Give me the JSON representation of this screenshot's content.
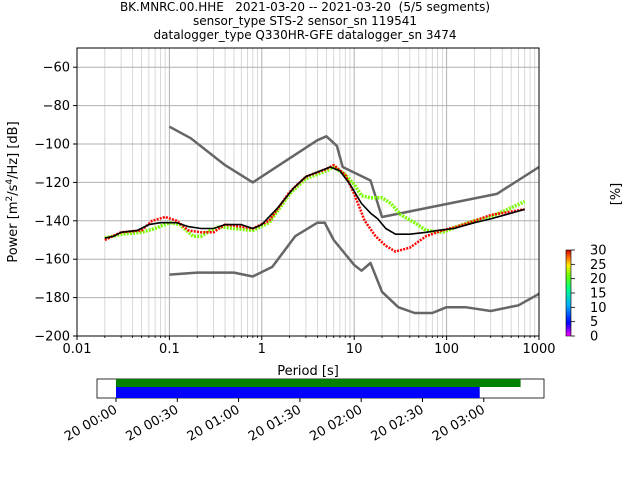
{
  "title_lines": [
    "BK.MNRC.00.HHE   2021-03-20 -- 2021-03-20  (5/5 segments)",
    "sensor_type STS-2 sensor_sn 119541",
    "datalogger_type Q330HR-GFE datalogger_sn 3474"
  ],
  "colorbar": {
    "label": "[%]",
    "ticks": [
      "0",
      "5",
      "10",
      "15",
      "20",
      "25",
      "30"
    ],
    "range": [
      0,
      30
    ]
  },
  "timeline": {
    "tick_labels": [
      "20 00:00",
      "20 00:30",
      "20 01:00",
      "20 01:30",
      "20 02:00",
      "20 02:30",
      "20 03:00"
    ],
    "green_bar": {
      "start": "00:00",
      "end": "03:18"
    },
    "blue_bar": {
      "start": "00:00",
      "end": "02:58"
    },
    "colors": {
      "green": "#008000",
      "blue": "#0000ff"
    }
  },
  "chart_data": {
    "type": "line",
    "xlabel": "Period [s]",
    "ylabel_parts": [
      "Power [m",
      "2",
      "/s",
      "4",
      "/Hz] [dB]"
    ],
    "xscale": "log",
    "xlim": [
      0.01,
      1000
    ],
    "ylim": [
      -200,
      -50
    ],
    "x_tick_labels": [
      "0.01",
      "0.1",
      "1",
      "10",
      "100",
      "1000"
    ],
    "x_ticks": [
      0.01,
      0.1,
      1,
      10,
      100,
      1000
    ],
    "y_ticks": [
      -60,
      -80,
      -100,
      -120,
      -140,
      -160,
      -180,
      -200
    ],
    "y_tick_labels": [
      "−60",
      "−80",
      "−100",
      "−120",
      "−140",
      "−160",
      "−180",
      "−200"
    ],
    "grid": true,
    "series": [
      {
        "role": "noise-model-high",
        "color": "#666666",
        "points": [
          [
            0.1,
            -91
          ],
          [
            0.17,
            -97
          ],
          [
            0.4,
            -111
          ],
          [
            0.8,
            -120
          ],
          [
            4,
            -98
          ],
          [
            5,
            -96
          ],
          [
            6.5,
            -101
          ],
          [
            7.5,
            -112
          ],
          [
            15,
            -119
          ],
          [
            20,
            -138
          ],
          [
            350,
            -126
          ],
          [
            1000,
            -112
          ]
        ]
      },
      {
        "role": "noise-model-low",
        "color": "#666666",
        "points": [
          [
            0.1,
            -168
          ],
          [
            0.2,
            -167
          ],
          [
            0.5,
            -167
          ],
          [
            0.8,
            -169
          ],
          [
            1.3,
            -164
          ],
          [
            2.3,
            -148
          ],
          [
            4,
            -141
          ],
          [
            4.8,
            -141
          ],
          [
            6,
            -150
          ],
          [
            10,
            -163
          ],
          [
            12,
            -166
          ],
          [
            15,
            -162
          ],
          [
            20,
            -177
          ],
          [
            30,
            -185
          ],
          [
            45,
            -188
          ],
          [
            70,
            -188
          ],
          [
            100,
            -185
          ],
          [
            160,
            -185
          ],
          [
            300,
            -187
          ],
          [
            600,
            -184
          ],
          [
            1000,
            -178
          ]
        ]
      },
      {
        "role": "mode",
        "color": "#000000",
        "points": [
          [
            0.02,
            -149
          ],
          [
            0.025,
            -148
          ],
          [
            0.03,
            -146
          ],
          [
            0.045,
            -145
          ],
          [
            0.06,
            -142
          ],
          [
            0.08,
            -141
          ],
          [
            0.12,
            -141
          ],
          [
            0.16,
            -143
          ],
          [
            0.22,
            -144
          ],
          [
            0.3,
            -144
          ],
          [
            0.4,
            -142
          ],
          [
            0.6,
            -142
          ],
          [
            0.8,
            -144
          ],
          [
            1,
            -142
          ],
          [
            1.5,
            -133
          ],
          [
            2.2,
            -123
          ],
          [
            3,
            -117
          ],
          [
            4.3,
            -114
          ],
          [
            5.5,
            -112
          ],
          [
            7,
            -114
          ],
          [
            9,
            -121
          ],
          [
            12,
            -131
          ],
          [
            15,
            -136
          ],
          [
            18,
            -139
          ],
          [
            22,
            -144
          ],
          [
            28,
            -147
          ],
          [
            40,
            -147
          ],
          [
            60,
            -146
          ],
          [
            80,
            -145
          ],
          [
            120,
            -144
          ],
          [
            200,
            -141
          ],
          [
            300,
            -139
          ],
          [
            700,
            -134
          ]
        ]
      },
      {
        "role": "density-high",
        "color": "#ff0000",
        "points": [
          [
            0.02,
            -150
          ],
          [
            0.03,
            -146
          ],
          [
            0.05,
            -145
          ],
          [
            0.065,
            -140
          ],
          [
            0.09,
            -138
          ],
          [
            0.12,
            -140
          ],
          [
            0.16,
            -145
          ],
          [
            0.22,
            -146
          ],
          [
            0.3,
            -146
          ],
          [
            0.4,
            -142
          ],
          [
            0.6,
            -143
          ],
          [
            0.8,
            -144
          ],
          [
            1.2,
            -140
          ],
          [
            2,
            -125
          ],
          [
            3,
            -117
          ],
          [
            5,
            -113
          ],
          [
            6,
            -111
          ],
          [
            8,
            -116
          ],
          [
            10,
            -126
          ],
          [
            13,
            -140
          ],
          [
            17,
            -148
          ],
          [
            22,
            -153
          ],
          [
            28,
            -156
          ],
          [
            40,
            -154
          ],
          [
            60,
            -148
          ],
          [
            90,
            -145
          ],
          [
            130,
            -143
          ],
          [
            200,
            -140
          ],
          [
            300,
            -137
          ],
          [
            700,
            -134
          ]
        ]
      },
      {
        "role": "density-low",
        "color": "#7cfc00",
        "points": [
          [
            0.02,
            -149
          ],
          [
            0.03,
            -147
          ],
          [
            0.05,
            -146
          ],
          [
            0.07,
            -144
          ],
          [
            0.1,
            -141
          ],
          [
            0.13,
            -142
          ],
          [
            0.18,
            -148
          ],
          [
            0.22,
            -148
          ],
          [
            0.28,
            -145
          ],
          [
            0.35,
            -143
          ],
          [
            0.5,
            -144
          ],
          [
            0.8,
            -145
          ],
          [
            1.2,
            -141
          ],
          [
            2,
            -126
          ],
          [
            3,
            -118
          ],
          [
            5,
            -114
          ],
          [
            6,
            -112
          ],
          [
            8,
            -116
          ],
          [
            10,
            -121
          ],
          [
            12,
            -127
          ],
          [
            15,
            -128
          ],
          [
            20,
            -128
          ],
          [
            25,
            -131
          ],
          [
            32,
            -137
          ],
          [
            45,
            -141
          ],
          [
            60,
            -145
          ],
          [
            90,
            -146
          ],
          [
            130,
            -143
          ],
          [
            200,
            -140
          ],
          [
            300,
            -138
          ],
          [
            700,
            -130
          ]
        ]
      }
    ]
  }
}
